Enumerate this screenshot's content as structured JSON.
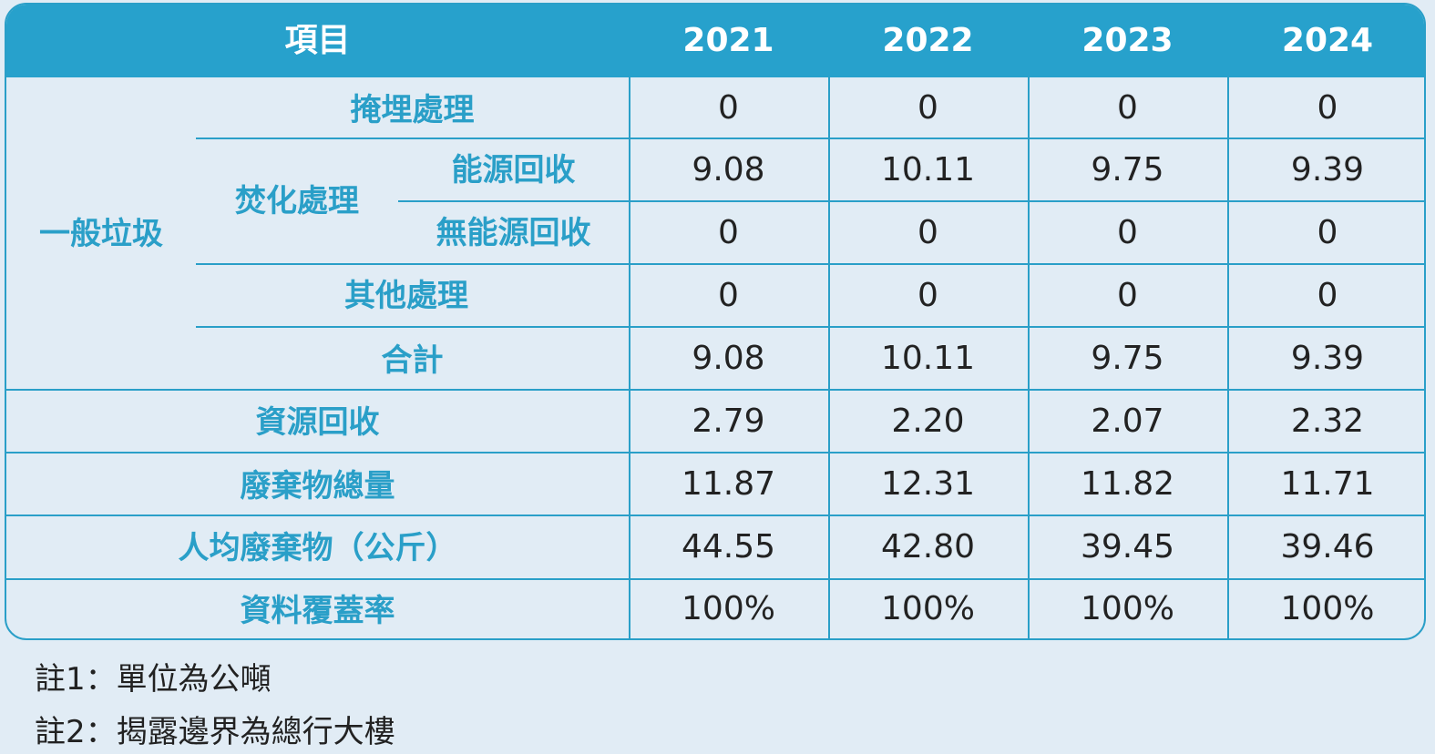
{
  "header": {
    "item_label": "項目",
    "years": [
      "2021",
      "2022",
      "2023",
      "2024"
    ]
  },
  "labels": {
    "general_waste": "一般垃圾",
    "landfill": "掩埋處理",
    "incineration": "焚化處理",
    "energy_recovery": "能源回收",
    "no_energy_recovery": "無能源回收",
    "other_treatment": "其他處理",
    "subtotal": "合計",
    "resource_recovery": "資源回收",
    "total_waste": "廢棄物總量",
    "per_capita": "人均廢棄物（公斤）",
    "coverage": "資料覆蓋率"
  },
  "rows": {
    "landfill": [
      "0",
      "0",
      "0",
      "0"
    ],
    "energy_recovery": [
      "9.08",
      "10.11",
      "9.75",
      "9.39"
    ],
    "no_energy_recovery": [
      "0",
      "0",
      "0",
      "0"
    ],
    "other_treatment": [
      "0",
      "0",
      "0",
      "0"
    ],
    "subtotal": [
      "9.08",
      "10.11",
      "9.75",
      "9.39"
    ],
    "resource_recovery": [
      "2.79",
      "2.20",
      "2.07",
      "2.32"
    ],
    "total_waste": [
      "11.87",
      "12.31",
      "11.82",
      "11.71"
    ],
    "per_capita": [
      "44.55",
      "42.80",
      "39.45",
      "39.46"
    ],
    "coverage": [
      "100%",
      "100%",
      "100%",
      "100%"
    ]
  },
  "notes": [
    "註1：單位為公噸",
    "註2：揭露邊界為總行大樓"
  ],
  "colors": {
    "header_bg": "#27a1cc",
    "accent": "#2a9fc8",
    "background": "#e1ecf5"
  }
}
